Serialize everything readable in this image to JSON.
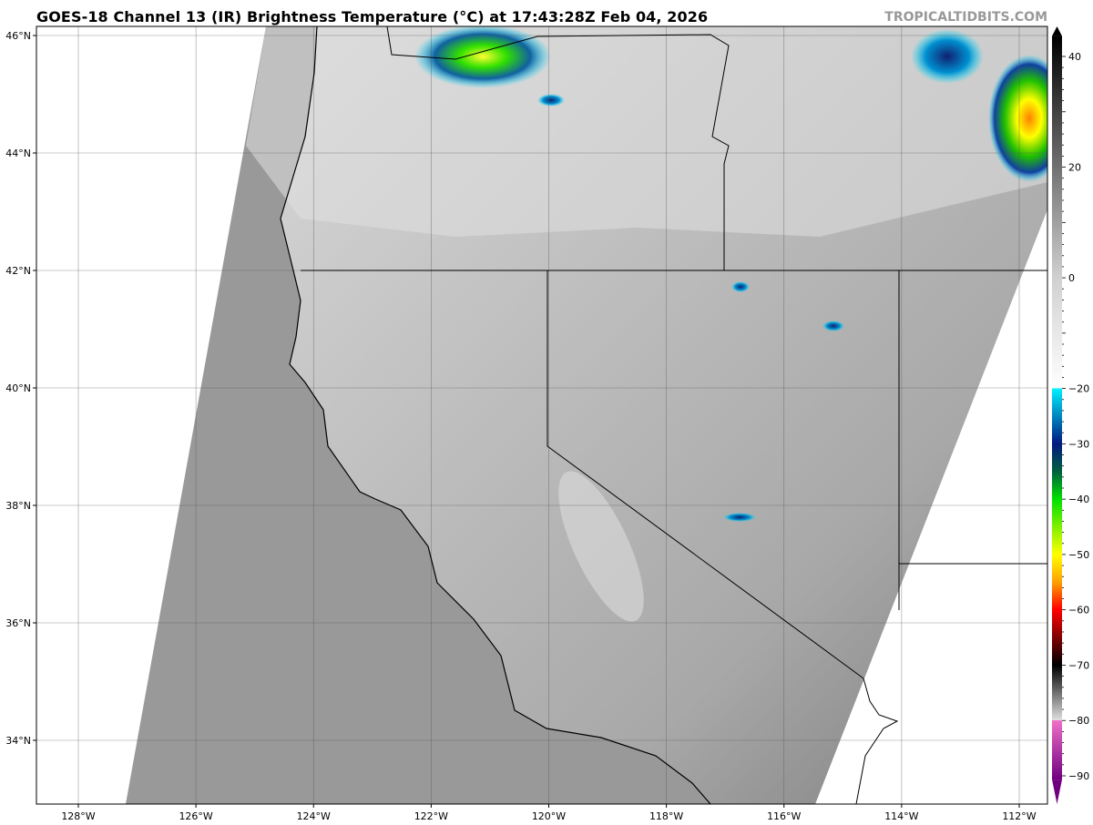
{
  "header": {
    "title": "GOES-18 Channel 13 (IR) Brightness Temperature (°C) at 17:43:28Z Feb 04, 2026",
    "credit": "TROPICALTIDBITS.COM"
  },
  "map": {
    "projection": "plate carree",
    "lon_range": [
      -128.7,
      -111.5
    ],
    "lat_range": [
      32.9,
      46.2
    ],
    "lon_ticks": [
      {
        "v": -128,
        "label": "128°W"
      },
      {
        "v": -126,
        "label": "126°W"
      },
      {
        "v": -124,
        "label": "124°W"
      },
      {
        "v": -122,
        "label": "122°W"
      },
      {
        "v": -120,
        "label": "120°W"
      },
      {
        "v": -118,
        "label": "118°W"
      },
      {
        "v": -116,
        "label": "116°W"
      },
      {
        "v": -114,
        "label": "114°W"
      },
      {
        "v": -112,
        "label": "112°W"
      }
    ],
    "lat_ticks": [
      {
        "v": 34,
        "label": "34°N"
      },
      {
        "v": 36,
        "label": "36°N"
      },
      {
        "v": 38,
        "label": "38°N"
      },
      {
        "v": 40,
        "label": "40°N"
      },
      {
        "v": 42,
        "label": "42°N"
      },
      {
        "v": 44,
        "label": "44°N"
      },
      {
        "v": 46,
        "label": "46°N"
      }
    ],
    "grid": true,
    "colors": {
      "ocean": "#999999",
      "land": "#b4b4b4",
      "grid": "#555555",
      "border": "#000000"
    }
  },
  "colorbar": {
    "range": [
      -92,
      45
    ],
    "ticks": [
      {
        "v": 40,
        "label": "40"
      },
      {
        "v": 20,
        "label": "20"
      },
      {
        "v": 0,
        "label": "0"
      },
      {
        "v": -20,
        "label": "−20"
      },
      {
        "v": -30,
        "label": "−30"
      },
      {
        "v": -40,
        "label": "−40"
      },
      {
        "v": -50,
        "label": "−50"
      },
      {
        "v": -60,
        "label": "−60"
      },
      {
        "v": -70,
        "label": "−70"
      },
      {
        "v": -80,
        "label": "−80"
      },
      {
        "v": -90,
        "label": "−90"
      }
    ],
    "stops": [
      {
        "v": 45,
        "c": "#000000"
      },
      {
        "v": 0,
        "c": "#d0d0d0"
      },
      {
        "v": -20,
        "c": "#ffffff"
      },
      {
        "v": -20,
        "c": "#00f0ff"
      },
      {
        "v": -30,
        "c": "#001a80"
      },
      {
        "v": -35,
        "c": "#006040"
      },
      {
        "v": -40,
        "c": "#00e000"
      },
      {
        "v": -50,
        "c": "#ffff00"
      },
      {
        "v": -55,
        "c": "#ffa000"
      },
      {
        "v": -60,
        "c": "#ff0000"
      },
      {
        "v": -70,
        "c": "#000000"
      },
      {
        "v": -80,
        "c": "#e0e0e0"
      },
      {
        "v": -80,
        "c": "#f070c8"
      },
      {
        "v": -92,
        "c": "#700080"
      }
    ]
  }
}
